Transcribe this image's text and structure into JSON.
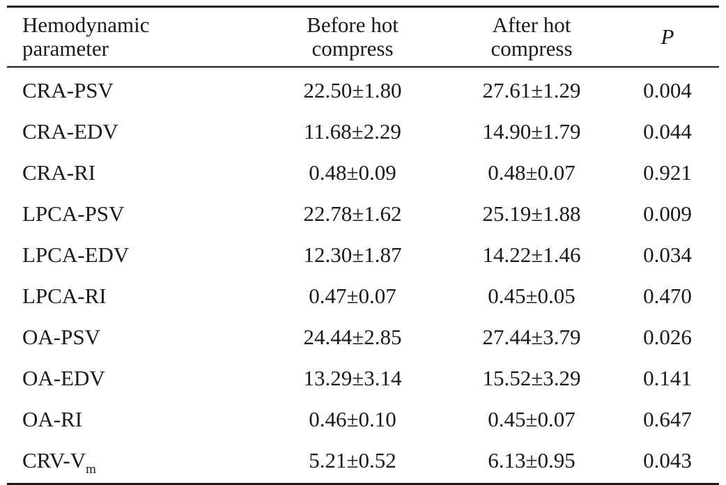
{
  "table": {
    "headers": {
      "param": [
        "Hemodynamic",
        "parameter"
      ],
      "before": [
        "Before hot",
        "compress"
      ],
      "after": [
        "After hot",
        "compress"
      ],
      "p": "P"
    },
    "rows": [
      {
        "param": "CRA-PSV",
        "before": "22.50±1.80",
        "after": "27.61±1.29",
        "p": "0.004"
      },
      {
        "param": "CRA-EDV",
        "before": "11.68±2.29",
        "after": "14.90±1.79",
        "p": "0.044"
      },
      {
        "param": "CRA-RI",
        "before": "0.48±0.09",
        "after": "0.48±0.07",
        "p": "0.921"
      },
      {
        "param": "LPCA-PSV",
        "before": "22.78±1.62",
        "after": "25.19±1.88",
        "p": "0.009"
      },
      {
        "param": "LPCA-EDV",
        "before": "12.30±1.87",
        "after": "14.22±1.46",
        "p": "0.034"
      },
      {
        "param": "LPCA-RI",
        "before": "0.47±0.07",
        "after": "0.45±0.05",
        "p": "0.470"
      },
      {
        "param": "OA-PSV",
        "before": "24.44±2.85",
        "after": "27.44±3.79",
        "p": "0.026"
      },
      {
        "param": "OA-EDV",
        "before": "13.29±3.14",
        "after": "15.52±3.29",
        "p": "0.141"
      },
      {
        "param": "OA-RI",
        "before": "0.46±0.10",
        "after": "0.45±0.07",
        "p": "0.647"
      },
      {
        "param": "CRV-V",
        "param_sub": "m",
        "before": "5.21±0.52",
        "after": "6.13±0.95",
        "p": "0.043"
      }
    ]
  }
}
